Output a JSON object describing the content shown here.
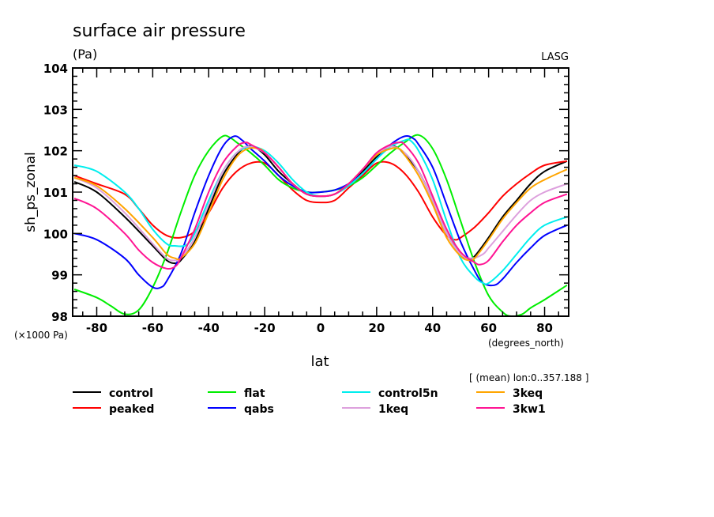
{
  "chart_data": {
    "type": "line",
    "title": "surface air pressure",
    "units": "(Pa)",
    "source_label": "LASG",
    "ylabel": "sh_ps_zonal",
    "yscale_note": "(×1000 Pa)",
    "xlabel": "lat",
    "xunits": "(degrees_north)",
    "subset_note": "[ (mean) lon:0..357.188 ]",
    "xlim": [
      -88.6,
      88.6
    ],
    "ylim": [
      98,
      104
    ],
    "xticks": [
      -80,
      -60,
      -40,
      -20,
      0,
      20,
      40,
      60,
      80
    ],
    "yticks": [
      98,
      99,
      100,
      101,
      102,
      103,
      104
    ],
    "grid": false,
    "legend_placement": "bottom",
    "series": [
      {
        "name": "control",
        "color": "#000000",
        "x": [
          -88,
          -80,
          -70,
          -60,
          -55,
          -52,
          -50,
          -45,
          -40,
          -35,
          -30,
          -27,
          -24,
          -20,
          -15,
          -10,
          -5,
          0,
          5,
          10,
          15,
          20,
          25,
          28,
          30,
          35,
          40,
          45,
          50,
          53,
          55,
          60,
          65,
          70,
          75,
          80,
          88
        ],
        "y": [
          101.25,
          101.0,
          100.4,
          99.7,
          99.35,
          99.28,
          99.35,
          99.8,
          100.6,
          101.4,
          101.9,
          102.08,
          102.1,
          101.9,
          101.5,
          101.2,
          100.95,
          100.9,
          100.95,
          101.2,
          101.5,
          101.85,
          102.1,
          102.05,
          101.9,
          101.5,
          100.8,
          100.0,
          99.5,
          99.4,
          99.45,
          99.9,
          100.4,
          100.8,
          101.2,
          101.5,
          101.75
        ]
      },
      {
        "name": "peaked",
        "color": "#ff0000",
        "x": [
          -88,
          -80,
          -70,
          -65,
          -60,
          -55,
          -50,
          -45,
          -40,
          -35,
          -30,
          -25,
          -20,
          -15,
          -10,
          -5,
          0,
          5,
          10,
          15,
          20,
          25,
          30,
          35,
          40,
          45,
          48,
          50,
          55,
          60,
          65,
          70,
          75,
          80,
          88
        ],
        "y": [
          101.4,
          101.2,
          100.95,
          100.6,
          100.2,
          99.95,
          99.9,
          100.05,
          100.5,
          101.1,
          101.5,
          101.7,
          101.7,
          101.4,
          101.05,
          100.8,
          100.75,
          100.8,
          101.1,
          101.4,
          101.7,
          101.7,
          101.45,
          101.0,
          100.4,
          99.95,
          99.85,
          99.9,
          100.15,
          100.5,
          100.9,
          101.2,
          101.45,
          101.65,
          101.75
        ]
      },
      {
        "name": "flat",
        "color": "#00ee00",
        "x": [
          -88,
          -80,
          -75,
          -70,
          -65,
          -60,
          -55,
          -50,
          -45,
          -40,
          -35,
          -32,
          -30,
          -25,
          -20,
          -15,
          -10,
          -5,
          0,
          5,
          10,
          15,
          20,
          25,
          30,
          35,
          40,
          45,
          50,
          55,
          60,
          65,
          68,
          72,
          75,
          80,
          88
        ],
        "y": [
          98.65,
          98.45,
          98.25,
          98.05,
          98.15,
          98.7,
          99.5,
          100.5,
          101.4,
          102.0,
          102.35,
          102.3,
          102.2,
          101.95,
          101.65,
          101.3,
          101.1,
          101.0,
          101.0,
          101.05,
          101.15,
          101.35,
          101.65,
          101.95,
          102.2,
          102.38,
          102.05,
          101.3,
          100.3,
          99.3,
          98.5,
          98.1,
          98.0,
          98.05,
          98.2,
          98.4,
          98.75
        ]
      },
      {
        "name": "qabs",
        "color": "#0000ff",
        "x": [
          -88,
          -80,
          -70,
          -65,
          -60,
          -57,
          -55,
          -50,
          -45,
          -40,
          -35,
          -31,
          -28,
          -25,
          -20,
          -15,
          -10,
          -5,
          0,
          5,
          10,
          15,
          20,
          25,
          30,
          33,
          35,
          40,
          45,
          50,
          55,
          58,
          62,
          65,
          70,
          75,
          80,
          88
        ],
        "y": [
          100.0,
          99.85,
          99.4,
          99.0,
          98.7,
          98.7,
          98.85,
          99.5,
          100.5,
          101.4,
          102.1,
          102.35,
          102.25,
          102.05,
          101.75,
          101.4,
          101.15,
          101.0,
          101.0,
          101.05,
          101.2,
          101.45,
          101.8,
          102.15,
          102.35,
          102.3,
          102.15,
          101.6,
          100.7,
          99.8,
          99.1,
          98.8,
          98.75,
          98.9,
          99.3,
          99.65,
          99.95,
          100.2
        ]
      },
      {
        "name": "control5n",
        "color": "#00eeee",
        "x": [
          -88,
          -80,
          -70,
          -65,
          -60,
          -55,
          -52,
          -48,
          -45,
          -40,
          -35,
          -30,
          -25,
          -20,
          -15,
          -10,
          -5,
          0,
          5,
          10,
          15,
          20,
          25,
          30,
          32,
          35,
          40,
          45,
          50,
          55,
          58,
          60,
          65,
          70,
          75,
          80,
          88
        ],
        "y": [
          101.65,
          101.5,
          101.0,
          100.6,
          100.1,
          99.75,
          99.7,
          99.72,
          100.0,
          100.8,
          101.5,
          101.95,
          102.1,
          102.0,
          101.7,
          101.3,
          101.0,
          100.9,
          100.95,
          101.15,
          101.45,
          101.8,
          102.1,
          102.25,
          102.25,
          102.0,
          101.3,
          100.3,
          99.4,
          98.95,
          98.8,
          98.8,
          99.1,
          99.5,
          99.9,
          100.2,
          100.4
        ]
      },
      {
        "name": "1keq",
        "color": "#dda0dd",
        "x": [
          -88,
          -80,
          -70,
          -60,
          -55,
          -52,
          -50,
          -45,
          -40,
          -35,
          -30,
          -26,
          -20,
          -15,
          -10,
          -5,
          0,
          5,
          10,
          15,
          20,
          25,
          30,
          35,
          40,
          45,
          50,
          54,
          58,
          60,
          65,
          70,
          75,
          80,
          88
        ],
        "y": [
          101.35,
          101.1,
          100.5,
          99.75,
          99.4,
          99.35,
          99.4,
          99.9,
          100.7,
          101.5,
          101.95,
          102.1,
          101.95,
          101.6,
          101.2,
          100.95,
          100.9,
          100.95,
          101.2,
          101.55,
          101.9,
          102.1,
          101.95,
          101.5,
          100.8,
          100.0,
          99.5,
          99.4,
          99.5,
          99.65,
          100.05,
          100.45,
          100.8,
          101.0,
          101.2
        ]
      },
      {
        "name": "3keq",
        "color": "#ffa500",
        "x": [
          -88,
          -80,
          -70,
          -60,
          -55,
          -52,
          -50,
          -45,
          -40,
          -35,
          -30,
          -26,
          -22,
          -20,
          -15,
          -10,
          -5,
          0,
          5,
          10,
          15,
          20,
          25,
          28,
          30,
          35,
          40,
          45,
          50,
          53,
          55,
          60,
          65,
          70,
          75,
          80,
          88
        ],
        "y": [
          101.35,
          101.15,
          100.6,
          99.9,
          99.5,
          99.4,
          99.4,
          99.75,
          100.5,
          101.3,
          101.85,
          102.05,
          102.05,
          101.95,
          101.6,
          101.2,
          100.95,
          100.9,
          100.95,
          101.2,
          101.55,
          101.9,
          102.05,
          102.05,
          101.9,
          101.4,
          100.7,
          99.9,
          99.45,
          99.35,
          99.4,
          99.85,
          100.35,
          100.75,
          101.1,
          101.3,
          101.55
        ]
      },
      {
        "name": "3kw1",
        "color": "#ff1493",
        "x": [
          -88,
          -80,
          -70,
          -65,
          -60,
          -55,
          -52,
          -50,
          -45,
          -40,
          -35,
          -30,
          -27,
          -25,
          -20,
          -15,
          -10,
          -5,
          0,
          5,
          10,
          15,
          20,
          25,
          28,
          30,
          35,
          40,
          45,
          50,
          55,
          57,
          60,
          65,
          70,
          75,
          80,
          88
        ],
        "y": [
          100.85,
          100.6,
          100.0,
          99.6,
          99.3,
          99.15,
          99.2,
          99.4,
          100.1,
          101.0,
          101.7,
          102.1,
          102.2,
          102.15,
          101.95,
          101.6,
          101.2,
          100.95,
          100.9,
          100.95,
          101.2,
          101.55,
          101.95,
          102.15,
          102.2,
          102.15,
          101.7,
          100.9,
          100.1,
          99.55,
          99.3,
          99.25,
          99.35,
          99.8,
          100.2,
          100.5,
          100.75,
          100.95
        ]
      }
    ],
    "legend_order": [
      "control",
      "flat",
      "control5n",
      "3keq",
      "peaked",
      "qabs",
      "1keq",
      "3kw1"
    ]
  }
}
